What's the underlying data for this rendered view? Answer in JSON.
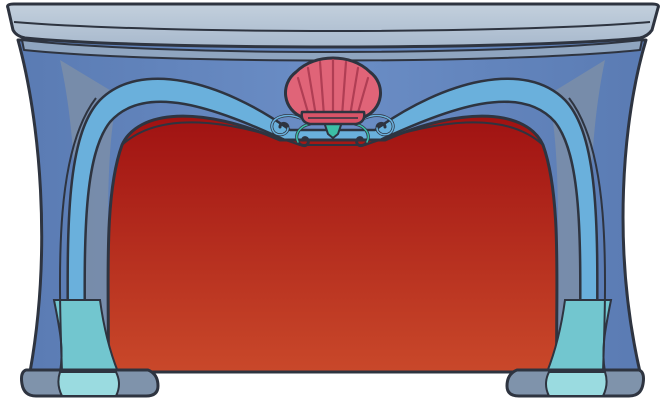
{
  "asset": {
    "kind": "ornamental-fireplace-mantel",
    "style": "cartoon, hand-drawn outlines",
    "parts": [
      "mantel-shelf",
      "frame-body",
      "arch-trim",
      "firebox-opening",
      "scallop-shell-ornament",
      "scroll-curls",
      "left-leg",
      "right-leg"
    ]
  },
  "colors": {
    "outline": "#2e3440",
    "shelf_top": "#b6c4d3",
    "shelf_edge": "#9fb1c8",
    "frame_light": "#6d8fc4",
    "frame_mid": "#5a7cb5",
    "frame_dark": "#4d6aa0",
    "frame_grey": "#7c8fa8",
    "arch_trim": "#6ab0dc",
    "leg_teal": "#72c6cf",
    "leg_teal_light": "#9adbe0",
    "firebox_top": "#a01212",
    "firebox_bottom": "#c9482a",
    "shell_pink": "#e06478",
    "shell_dark": "#b03e54",
    "ornament_teal": "#3cbfa6"
  }
}
